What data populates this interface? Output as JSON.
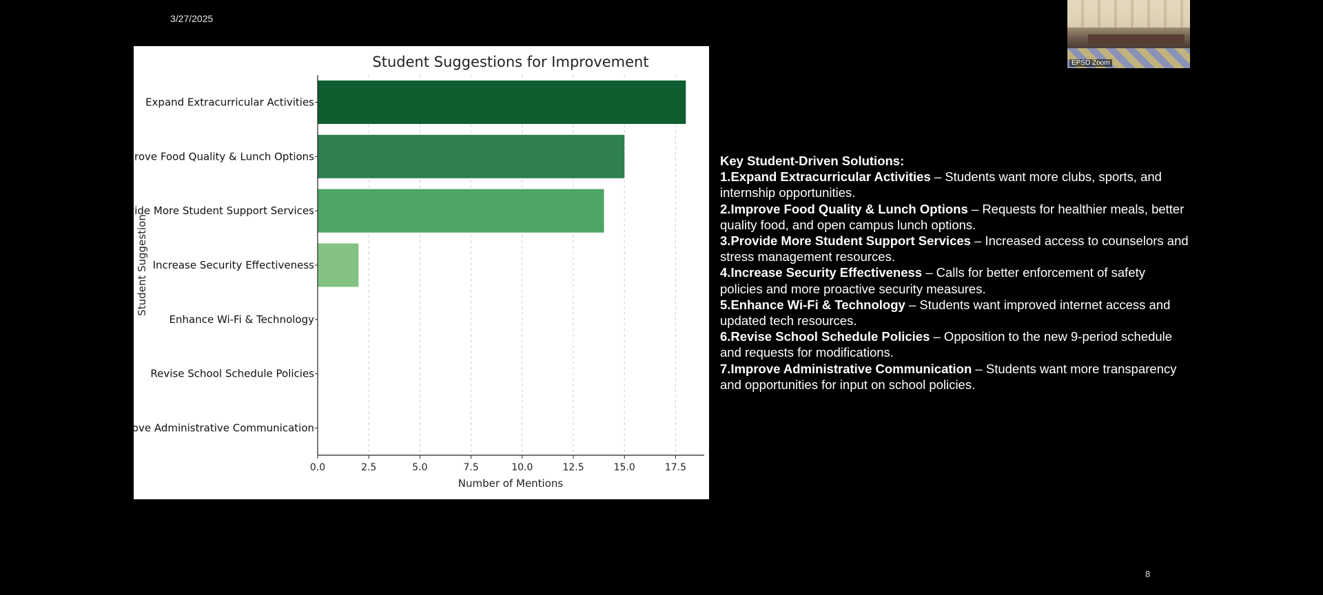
{
  "slide": {
    "date": "3/27/2025",
    "page_number": "8"
  },
  "video": {
    "label": "EPSD Zoom"
  },
  "chart_data": {
    "type": "bar",
    "orientation": "horizontal",
    "title": "Student Suggestions for Improvement",
    "xlabel": "Number of Mentions",
    "ylabel": "Student Suggestion",
    "categories": [
      "Expand Extracurricular Activities",
      "Improve Food Quality & Lunch Options",
      "Provide More Student Support Services",
      "Increase Security Effectiveness",
      "Enhance Wi-Fi & Technology",
      "Revise School Schedule Policies",
      "Improve Administrative Communication"
    ],
    "values": [
      18,
      15,
      14,
      2,
      0,
      0,
      0
    ],
    "colors": [
      "#0e5e30",
      "#2e8050",
      "#4ea565",
      "#84c283",
      "#a9d6a2",
      "#c4e4bc",
      "#dcefd6"
    ],
    "xlim": [
      0,
      18.9
    ],
    "xticks": [
      "0.0",
      "2.5",
      "5.0",
      "7.5",
      "10.0",
      "12.5",
      "15.0",
      "17.5"
    ],
    "grid": "vertical dashed"
  },
  "notes": {
    "heading": "Key Student-Driven Solutions:",
    "items": [
      {
        "num": "1.",
        "head": "Expand Extracurricular Activities",
        "text": " – Students want more clubs, sports, and internship opportunities."
      },
      {
        "num": "2.",
        "head": "Improve Food Quality & Lunch Options",
        "text": " – Requests for healthier meals, better quality food, and open campus lunch options."
      },
      {
        "num": "3.",
        "head": "Provide More Student Support Services",
        "text": " – Increased access to counselors and stress management resources."
      },
      {
        "num": "4.",
        "head": "Increase Security Effectiveness",
        "text": " – Calls for better enforcement of safety policies and more proactive security measures."
      },
      {
        "num": "5.",
        "head": "Enhance Wi-Fi & Technology",
        "text": " – Students want improved internet access and updated tech resources."
      },
      {
        "num": "6.",
        "head": "Revise School Schedule Policies",
        "text": " – Opposition to the new 9-period schedule and requests for modifications."
      },
      {
        "num": "7.",
        "head": "Improve Administrative Communication",
        "text": " – Students want more transparency and opportunities for input on school policies."
      }
    ]
  }
}
